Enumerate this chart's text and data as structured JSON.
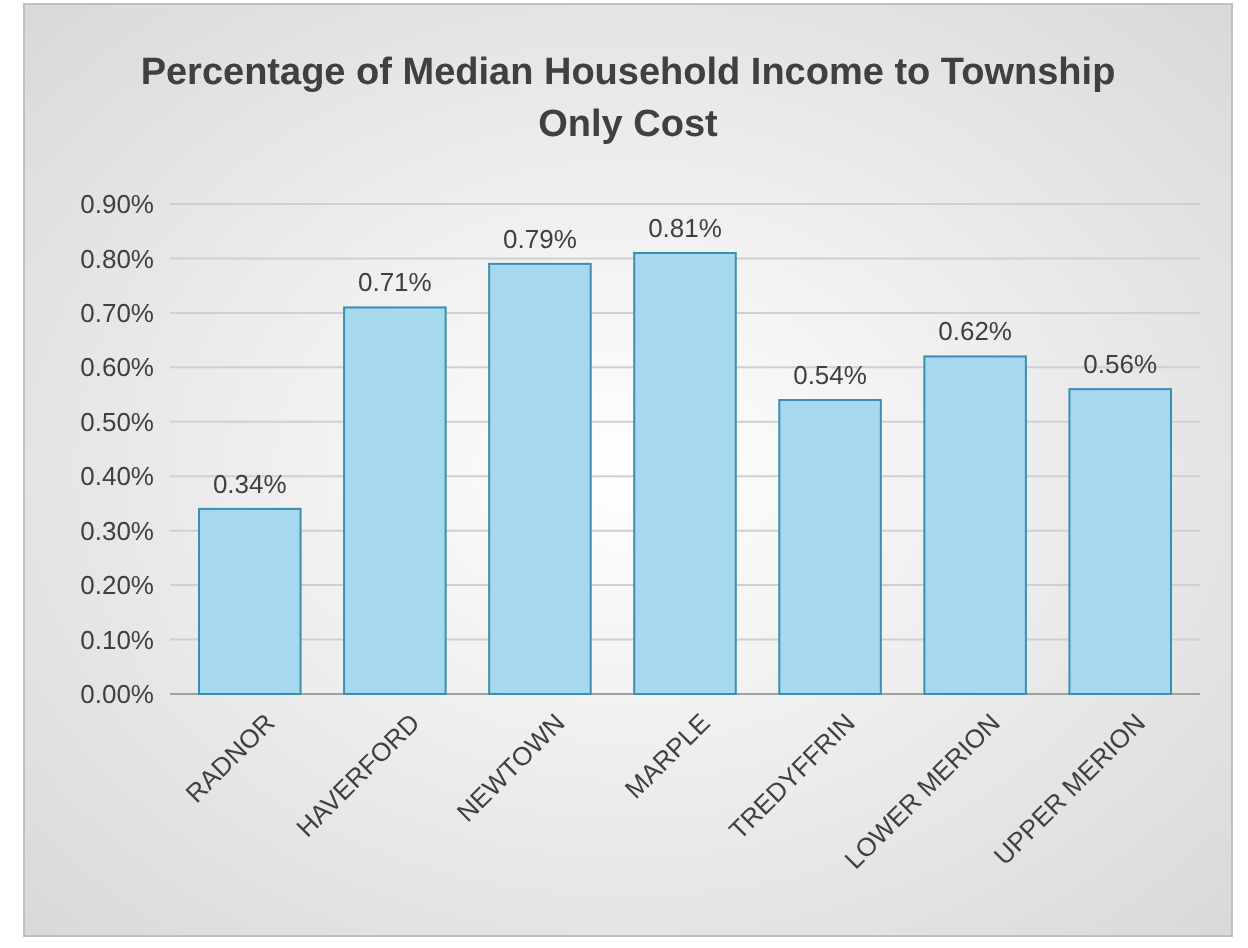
{
  "chart_data": {
    "type": "bar",
    "title": "Percentage of Median Household Income to Township Only Cost",
    "categories": [
      "RADNOR",
      "HAVERFORD",
      "NEWTOWN",
      "MARPLE",
      "TREDYFFRIN",
      "LOWER MERION",
      "UPPER MERION"
    ],
    "values": [
      0.34,
      0.71,
      0.79,
      0.81,
      0.54,
      0.62,
      0.56
    ],
    "value_labels": [
      "0.34%",
      "0.71%",
      "0.79%",
      "0.81%",
      "0.54%",
      "0.62%",
      "0.56%"
    ],
    "color": "#a6d8ee",
    "ylim": [
      0,
      0.9
    ],
    "yticks": [
      {
        "value": 0,
        "label": "0.00%"
      },
      {
        "value": 0.1,
        "label": "0.10%"
      },
      {
        "value": 0.2,
        "label": "0.20%"
      },
      {
        "value": 0.3,
        "label": "0.30%"
      },
      {
        "value": 0.4,
        "label": "0.40%"
      },
      {
        "value": 0.5,
        "label": "0.50%"
      },
      {
        "value": 0.6,
        "label": "0.60%"
      },
      {
        "value": 0.7,
        "label": "0.70%"
      },
      {
        "value": 0.8,
        "label": "0.80%"
      },
      {
        "value": 0.9,
        "label": "0.90%"
      }
    ],
    "grid": "y"
  }
}
